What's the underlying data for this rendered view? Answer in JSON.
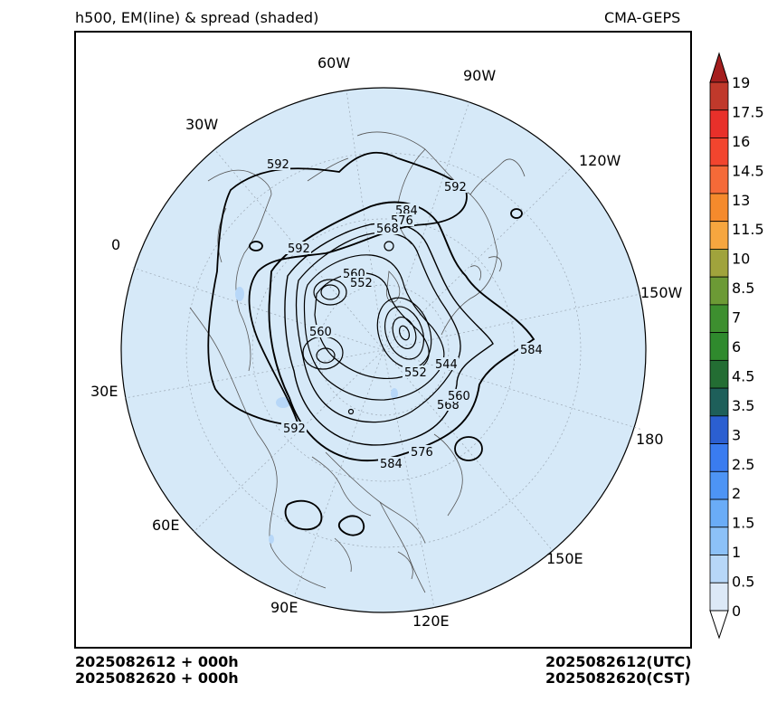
{
  "header": {
    "title_left": "h500, EM(line) & spread (shaded)",
    "title_right": "CMA-GEPS"
  },
  "footer": {
    "left_line1": "2025082612 + 000h",
    "left_line2": "2025082620 + 000h",
    "right_line1": "2025082612(UTC)",
    "right_line2": "2025082620(CST)"
  },
  "map": {
    "projection": "north polar stereographic",
    "fill_color": "#d6e9f8",
    "longitude_labels": [
      "60W",
      "90W",
      "30W",
      "120W",
      "0",
      "150W",
      "30E",
      "180",
      "60E",
      "150E",
      "90E",
      "120E"
    ],
    "contour_labels": [
      "592",
      "592",
      "592",
      "592",
      "584",
      "584",
      "584",
      "576",
      "576",
      "568",
      "568",
      "560",
      "560",
      "560",
      "552",
      "552",
      "544"
    ]
  },
  "colorbar": {
    "labels": [
      "19",
      "17.5",
      "16",
      "14.5",
      "13",
      "11.5",
      "10",
      "8.5",
      "7",
      "6",
      "4.5",
      "3.5",
      "3",
      "2.5",
      "2",
      "1.5",
      "1",
      "0.5",
      "0"
    ],
    "colors_top_to_bottom": [
      "#c0392b",
      "#e8302a",
      "#f2452e",
      "#f56a38",
      "#f58a2c",
      "#f6a63f",
      "#a0a33c",
      "#6c9a35",
      "#3d8f2f",
      "#2f8a2d",
      "#236d33",
      "#1e5f5a",
      "#2b5fd1",
      "#3a7cf0",
      "#4d94f5",
      "#6aacf7",
      "#8cc1f8",
      "#b7d7f8",
      "#dce9f7"
    ],
    "top_arrow_color": "#a51e1e",
    "bottom_arrow_color": "#ffffff"
  }
}
